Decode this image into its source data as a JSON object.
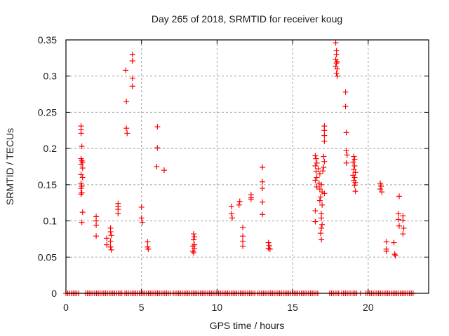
{
  "chart_data": {
    "type": "scatter",
    "title": "Day 265 of 2018, SRMTID for receiver koug",
    "xlabel": "GPS time / hours",
    "ylabel": "SRMTID / TECUs",
    "xlim": [
      0,
      24
    ],
    "ylim": [
      0,
      0.35
    ],
    "xticks": [
      0,
      5,
      10,
      15,
      20
    ],
    "xtick_labels": [
      "0",
      "5",
      "10",
      "15",
      "20"
    ],
    "yticks": [
      0,
      0.05,
      0.1,
      0.15,
      0.2,
      0.25,
      0.3,
      0.35
    ],
    "ytick_labels": [
      "0",
      "0.05",
      "0.1",
      "0.15",
      "0.2",
      "0.25",
      "0.3",
      "0.35"
    ],
    "grid": true,
    "legend": "none",
    "marker": "+",
    "series": [
      {
        "name": "SRMTID",
        "color": "#ff0000",
        "points": [
          [
            1.0,
            0.231
          ],
          [
            1.0,
            0.226
          ],
          [
            1.0,
            0.221
          ],
          [
            1.05,
            0.203
          ],
          [
            1.0,
            0.186
          ],
          [
            1.05,
            0.183
          ],
          [
            1.1,
            0.181
          ],
          [
            1.0,
            0.178
          ],
          [
            1.1,
            0.173
          ],
          [
            1.0,
            0.164
          ],
          [
            1.1,
            0.16
          ],
          [
            1.0,
            0.152
          ],
          [
            1.05,
            0.148
          ],
          [
            1.0,
            0.145
          ],
          [
            1.05,
            0.139
          ],
          [
            1.0,
            0.137
          ],
          [
            1.1,
            0.112
          ],
          [
            1.05,
            0.098
          ],
          [
            2.0,
            0.106
          ],
          [
            2.0,
            0.1
          ],
          [
            2.0,
            0.094
          ],
          [
            2.0,
            0.079
          ],
          [
            2.7,
            0.076
          ],
          [
            2.7,
            0.067
          ],
          [
            2.95,
            0.09
          ],
          [
            2.95,
            0.085
          ],
          [
            3.0,
            0.08
          ],
          [
            2.95,
            0.072
          ],
          [
            2.95,
            0.064
          ],
          [
            3.0,
            0.06
          ],
          [
            3.45,
            0.124
          ],
          [
            3.45,
            0.12
          ],
          [
            3.45,
            0.116
          ],
          [
            3.45,
            0.11
          ],
          [
            3.95,
            0.308
          ],
          [
            4.0,
            0.265
          ],
          [
            4.0,
            0.228
          ],
          [
            4.05,
            0.221
          ],
          [
            4.4,
            0.33
          ],
          [
            4.4,
            0.321
          ],
          [
            4.4,
            0.297
          ],
          [
            4.4,
            0.286
          ],
          [
            5.0,
            0.119
          ],
          [
            5.0,
            0.104
          ],
          [
            5.05,
            0.098
          ],
          [
            5.4,
            0.071
          ],
          [
            5.4,
            0.064
          ],
          [
            5.45,
            0.061
          ],
          [
            6.05,
            0.23
          ],
          [
            6.05,
            0.201
          ],
          [
            6.0,
            0.175
          ],
          [
            6.5,
            0.17
          ],
          [
            8.45,
            0.082
          ],
          [
            8.5,
            0.078
          ],
          [
            8.45,
            0.074
          ],
          [
            8.5,
            0.067
          ],
          [
            8.4,
            0.065
          ],
          [
            8.5,
            0.062
          ],
          [
            8.4,
            0.058
          ],
          [
            8.45,
            0.056
          ],
          [
            10.95,
            0.12
          ],
          [
            10.95,
            0.11
          ],
          [
            11.0,
            0.104
          ],
          [
            11.5,
            0.127
          ],
          [
            11.45,
            0.122
          ],
          [
            11.7,
            0.091
          ],
          [
            11.7,
            0.079
          ],
          [
            11.7,
            0.072
          ],
          [
            11.7,
            0.065
          ],
          [
            12.25,
            0.136
          ],
          [
            12.25,
            0.132
          ],
          [
            12.25,
            0.13
          ],
          [
            13.0,
            0.174
          ],
          [
            13.0,
            0.154
          ],
          [
            13.0,
            0.145
          ],
          [
            13.0,
            0.126
          ],
          [
            13.0,
            0.109
          ],
          [
            13.4,
            0.07
          ],
          [
            13.45,
            0.066
          ],
          [
            13.4,
            0.062
          ],
          [
            13.5,
            0.061
          ],
          [
            16.5,
            0.19
          ],
          [
            16.55,
            0.186
          ],
          [
            16.6,
            0.18
          ],
          [
            16.5,
            0.176
          ],
          [
            16.7,
            0.172
          ],
          [
            16.55,
            0.168
          ],
          [
            16.8,
            0.165
          ],
          [
            16.6,
            0.16
          ],
          [
            16.5,
            0.156
          ],
          [
            16.75,
            0.152
          ],
          [
            16.9,
            0.15
          ],
          [
            16.6,
            0.147
          ],
          [
            16.8,
            0.144
          ],
          [
            16.95,
            0.14
          ],
          [
            17.1,
            0.138
          ],
          [
            16.5,
            0.114
          ],
          [
            16.9,
            0.11
          ],
          [
            16.9,
            0.104
          ],
          [
            16.95,
            0.095
          ],
          [
            16.9,
            0.09
          ],
          [
            16.85,
            0.083
          ],
          [
            16.9,
            0.074
          ],
          [
            16.8,
            0.128
          ],
          [
            16.95,
            0.122
          ],
          [
            16.5,
            0.099
          ],
          [
            16.85,
            0.133
          ],
          [
            17.0,
            0.169
          ],
          [
            17.05,
            0.174
          ],
          [
            17.1,
            0.182
          ],
          [
            17.05,
            0.189
          ],
          [
            17.1,
            0.21
          ],
          [
            17.1,
            0.231
          ],
          [
            17.1,
            0.225
          ],
          [
            17.1,
            0.218
          ],
          [
            17.85,
            0.346
          ],
          [
            17.9,
            0.335
          ],
          [
            17.9,
            0.33
          ],
          [
            17.85,
            0.323
          ],
          [
            17.95,
            0.32
          ],
          [
            17.9,
            0.318
          ],
          [
            17.85,
            0.313
          ],
          [
            17.95,
            0.31
          ],
          [
            17.9,
            0.304
          ],
          [
            17.95,
            0.3
          ],
          [
            18.5,
            0.278
          ],
          [
            18.5,
            0.258
          ],
          [
            18.55,
            0.222
          ],
          [
            18.55,
            0.197
          ],
          [
            18.6,
            0.191
          ],
          [
            18.55,
            0.18
          ],
          [
            19.05,
            0.189
          ],
          [
            19.1,
            0.185
          ],
          [
            19.0,
            0.181
          ],
          [
            19.1,
            0.176
          ],
          [
            19.05,
            0.171
          ],
          [
            19.15,
            0.167
          ],
          [
            19.0,
            0.163
          ],
          [
            19.1,
            0.16
          ],
          [
            19.05,
            0.156
          ],
          [
            19.15,
            0.153
          ],
          [
            19.1,
            0.149
          ],
          [
            19.15,
            0.141
          ],
          [
            20.8,
            0.152
          ],
          [
            20.85,
            0.148
          ],
          [
            20.8,
            0.144
          ],
          [
            20.9,
            0.14
          ],
          [
            21.2,
            0.071
          ],
          [
            21.2,
            0.061
          ],
          [
            21.2,
            0.058
          ],
          [
            21.7,
            0.07
          ],
          [
            21.75,
            0.054
          ],
          [
            21.8,
            0.052
          ],
          [
            22.05,
            0.134
          ],
          [
            22.0,
            0.11
          ],
          [
            22.0,
            0.102
          ],
          [
            22.05,
            0.093
          ],
          [
            22.3,
            0.107
          ],
          [
            22.3,
            0.101
          ],
          [
            22.35,
            0.09
          ],
          [
            22.3,
            0.082
          ]
        ],
        "zero_value_time_ranges": [
          [
            0.0,
            0.95
          ],
          [
            1.3,
            3.8
          ],
          [
            3.9,
            7.0
          ],
          [
            7.1,
            12.6
          ],
          [
            12.7,
            16.7
          ],
          [
            17.45,
            18.1
          ],
          [
            18.25,
            18.9
          ],
          [
            19.0,
            19.35
          ],
          [
            19.5,
            19.6
          ],
          [
            19.85,
            23.0
          ]
        ]
      }
    ]
  }
}
